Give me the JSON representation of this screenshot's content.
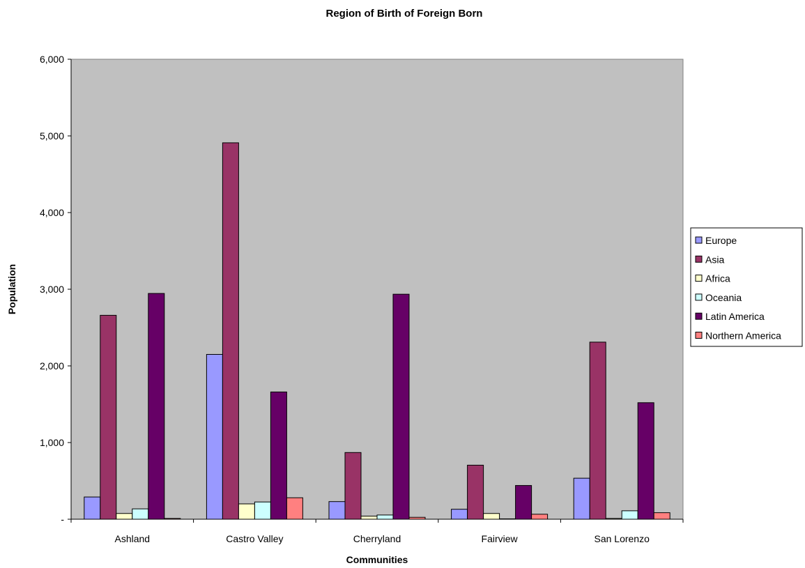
{
  "chart_data": {
    "type": "bar",
    "title": "Region of Birth of Foreign Born",
    "xlabel": "Communities",
    "ylabel": "Population",
    "ylim": [
      0,
      6000
    ],
    "yticks": [
      0,
      1000,
      2000,
      3000,
      4000,
      5000,
      6000
    ],
    "ytick_labels": [
      "-",
      "1,000",
      "2,000",
      "3,000",
      "4,000",
      "5,000",
      "6,000"
    ],
    "grid": false,
    "legend_position": "right",
    "plot_background": "#C0C0C0",
    "categories": [
      "Ashland",
      "Castro Valley",
      "Cherryland",
      "Fairview",
      "San Lorenzo"
    ],
    "series": [
      {
        "name": "Europe",
        "color": "#9999FF",
        "values": [
          290,
          2150,
          230,
          130,
          535
        ]
      },
      {
        "name": "Asia",
        "color": "#993366",
        "values": [
          2660,
          4910,
          870,
          705,
          2310
        ]
      },
      {
        "name": "Africa",
        "color": "#FFFFCC",
        "values": [
          75,
          200,
          40,
          75,
          10
        ]
      },
      {
        "name": "Oceania",
        "color": "#CCFFFF",
        "values": [
          135,
          225,
          55,
          5,
          110
        ]
      },
      {
        "name": "Latin America",
        "color": "#660066",
        "values": [
          2945,
          1660,
          2935,
          440,
          1520
        ]
      },
      {
        "name": "Northern America",
        "color": "#FF8080",
        "values": [
          10,
          280,
          25,
          65,
          85
        ]
      }
    ]
  }
}
